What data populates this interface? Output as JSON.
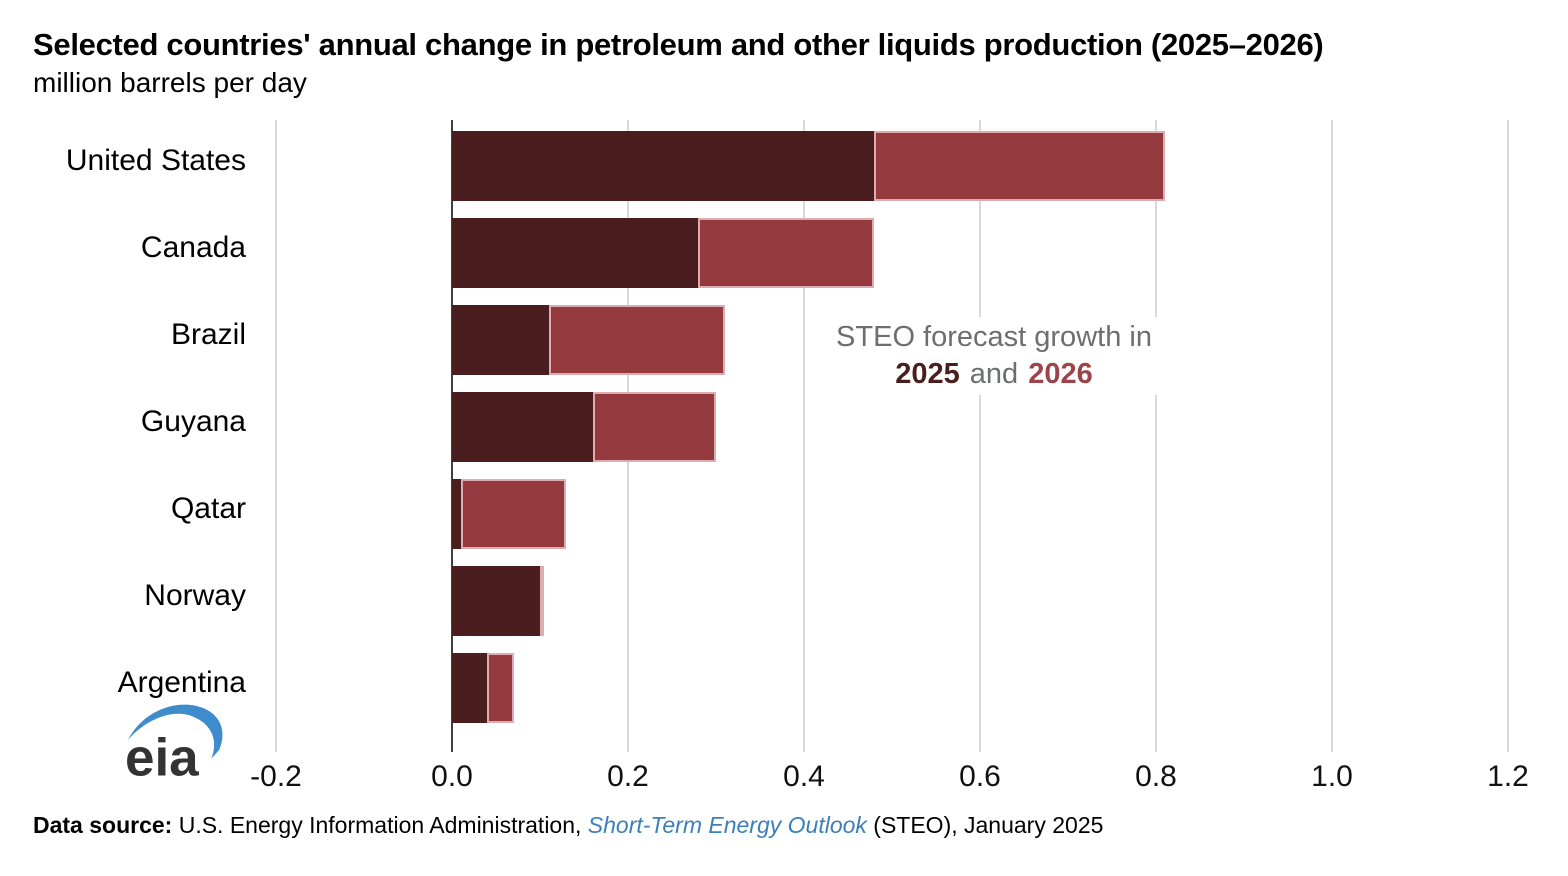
{
  "header": {
    "title": "Selected countries' annual change in petroleum and other liquids production (2025–2026)",
    "subtitle": "million barrels per day"
  },
  "chart_data": {
    "type": "bar",
    "orientation": "horizontal",
    "stacked": true,
    "categories": [
      "United States",
      "Canada",
      "Brazil",
      "Guyana",
      "Qatar",
      "Norway",
      "Argentina"
    ],
    "series": [
      {
        "name": "2025",
        "color": "#4a1d1f",
        "values": [
          0.48,
          0.28,
          0.11,
          0.16,
          0.01,
          0.1,
          0.04
        ]
      },
      {
        "name": "2026",
        "color": "#953b40",
        "values": [
          0.33,
          0.2,
          0.2,
          0.14,
          0.12,
          0.0,
          0.03
        ]
      }
    ],
    "title": "Selected countries' annual change in petroleum and other liquids production (2025–2026)",
    "xlabel": "",
    "ylabel": "million barrels per day",
    "xlim": [
      -0.2,
      1.2
    ],
    "xticks": [
      -0.2,
      0.0,
      0.2,
      0.4,
      0.6,
      0.8,
      1.0,
      1.2
    ],
    "xtick_labels": [
      "-0.2",
      "0.0",
      "0.2",
      "0.4",
      "0.6",
      "0.8",
      "1.0",
      "1.2"
    ],
    "grid": "vertical",
    "legend_position": "right-center",
    "annotation": {
      "line1": "STEO forecast growth in",
      "year1": "2025",
      "conjunction": "and",
      "year2": "2026"
    }
  },
  "colors": {
    "series_2025": "#4a1d1f",
    "series_2026": "#953b40",
    "segment_border": "#dcacb0",
    "gridline": "#d9d9d9",
    "zero_axis": "#404040",
    "legend_gray": "#6d6e71",
    "link_blue": "#3d7fba",
    "logo_blue": "#3f8ccc",
    "logo_gray": "#333333"
  },
  "logo": {
    "text": "eia"
  },
  "footer": {
    "label": "Data source: ",
    "text": "U.S. Energy Information Administration, ",
    "link": "Short-Term Energy Outlook",
    "suffix": " (STEO), January 2025"
  }
}
